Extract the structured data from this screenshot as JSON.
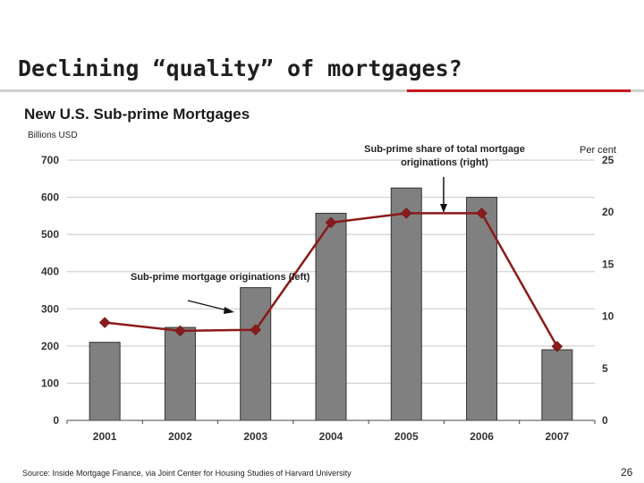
{
  "slide": {
    "title": "Declining “quality” of mortgages?",
    "source": "Source: Inside Mortgage Finance, via Joint Center for Housing Studies of Harvard University",
    "page_number": "26"
  },
  "chart_data": {
    "type": "bar",
    "title": "New U.S. Sub-prime Mortgages",
    "categories": [
      "2001",
      "2002",
      "2003",
      "2004",
      "2005",
      "2006",
      "2007"
    ],
    "series": [
      {
        "name": "Sub-prime mortgage originations (left)",
        "type": "bar",
        "axis": "left",
        "color": "#808080",
        "values": [
          210,
          250,
          357,
          557,
          625,
          600,
          190
        ]
      },
      {
        "name": "Sub-prime share of total mortgage originations (right)",
        "type": "line",
        "axis": "right",
        "color": "#8b1a1a",
        "values": [
          9.4,
          8.6,
          8.7,
          19.0,
          19.9,
          19.9,
          7.1
        ]
      }
    ],
    "y_left": {
      "label": "Billions USD",
      "ylim": [
        0,
        700
      ],
      "ticks": [
        "0",
        "100",
        "200",
        "300",
        "400",
        "500",
        "600",
        "700"
      ]
    },
    "y_right": {
      "label": "Per cent",
      "ylim": [
        0,
        25
      ],
      "ticks": [
        "0",
        "5",
        "10",
        "15",
        "20",
        "25"
      ]
    },
    "grid": true,
    "annotations": {
      "right": "Sub-prime share of total mortgage originations  (right)",
      "left": "Sub-prime mortgage originations (left)"
    },
    "accent_color": "#c8161d"
  }
}
